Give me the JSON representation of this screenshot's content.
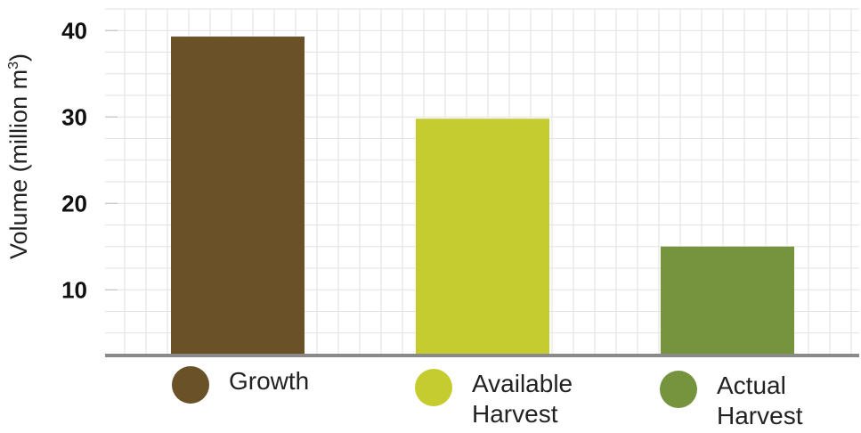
{
  "chart_data": {
    "type": "bar",
    "categories": [
      "Growth",
      "Available Harvest",
      "Actual Harvest"
    ],
    "values": [
      39.3,
      29.8,
      15
    ],
    "colors": [
      "#6b5127",
      "#c5cc2f",
      "#76943e"
    ],
    "ylabel": "Volume (million m",
    "ylabel_superscript": "3",
    "ylabel_close": ")",
    "yticks": [
      10,
      20,
      30,
      40
    ],
    "ylim": [
      2.4,
      42.5
    ],
    "grid": true,
    "legend": "bottom",
    "legend_labels": [
      [
        "Growth"
      ],
      [
        "Available",
        "Harvest"
      ],
      [
        "Actual",
        "Harvest"
      ]
    ]
  }
}
